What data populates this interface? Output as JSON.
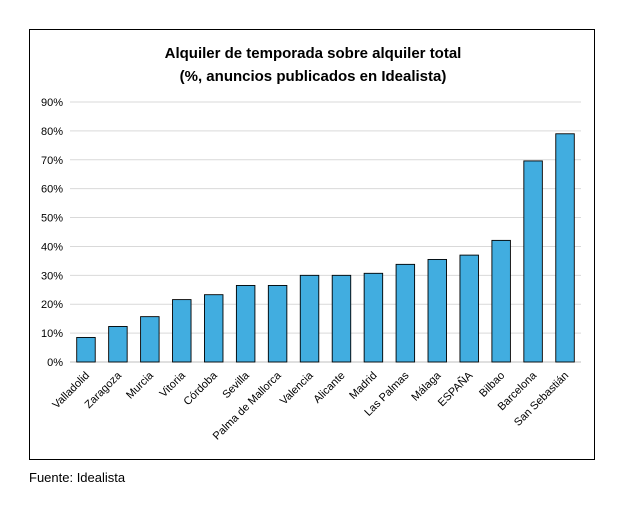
{
  "source_note": "Fuente: Idealista",
  "chart_data": {
    "type": "bar",
    "title_line1": "Alquiler de temporada sobre alquiler total",
    "title_line2": "(%, anuncios publicados en Idealista)",
    "xlabel": "",
    "ylabel": "",
    "ylim": [
      0,
      90
    ],
    "yticks": [
      0,
      10,
      20,
      30,
      40,
      50,
      60,
      70,
      80,
      90
    ],
    "ytick_labels": [
      "0%",
      "10%",
      "20%",
      "30%",
      "40%",
      "50%",
      "60%",
      "70%",
      "80%",
      "90%"
    ],
    "grid": true,
    "legend": "none",
    "bar_color": "#41ADE0",
    "categories": [
      "Valladolid",
      "Zaragoza",
      "Murcia",
      "Vitoria",
      "Córdoba",
      "Sevilla",
      "Palma de Mallorca",
      "Valencia",
      "Alicante",
      "Madrid",
      "Las Palmas",
      "Málaga",
      "ESPAÑA",
      "Bilbao",
      "Barcelona",
      "San Sebastián"
    ],
    "values": [
      8.5,
      12.3,
      15.7,
      21.6,
      23.3,
      26.5,
      26.5,
      30.0,
      30.0,
      30.7,
      33.8,
      35.5,
      37.0,
      42.1,
      69.6,
      79.0
    ]
  }
}
